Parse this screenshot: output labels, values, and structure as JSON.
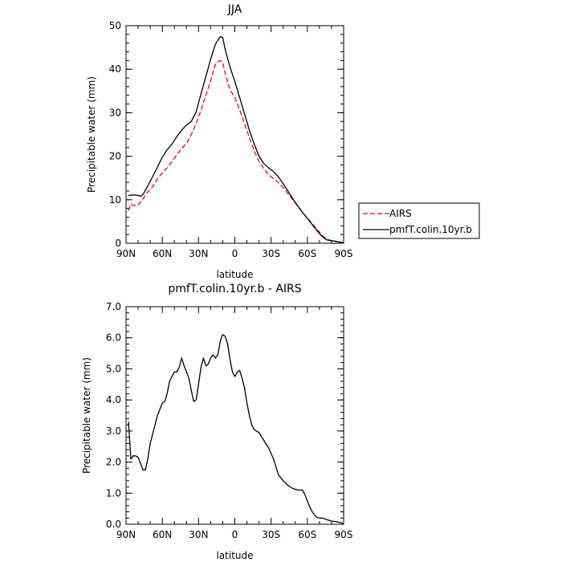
{
  "chart_data": [
    {
      "type": "line",
      "title": "JJA",
      "xlabel": "latitude",
      "ylabel": "Precipitable water (mm)",
      "xlim": [
        90,
        -90
      ],
      "ylim": [
        0,
        50
      ],
      "x_ticks": [
        90,
        60,
        30,
        0,
        -30,
        -60,
        -90
      ],
      "x_tick_labels": [
        "90N",
        "60N",
        "30N",
        "0",
        "30S",
        "60S",
        "90S"
      ],
      "y_ticks": [
        0,
        10,
        20,
        30,
        40,
        50
      ],
      "y_tick_labels": [
        "0",
        "10",
        "20",
        "30",
        "40",
        "50"
      ],
      "grid": false,
      "legend": {
        "placement": "right",
        "entries": [
          "AIRS",
          "pmfT.colin.10yr.b"
        ]
      },
      "series": [
        {
          "name": "AIRS",
          "color": "#ff0000",
          "dash": "dashed",
          "x": [
            88,
            86,
            84,
            80,
            76,
            72,
            68,
            64,
            60,
            56,
            52,
            48,
            44,
            40,
            36,
            32,
            28,
            24,
            20,
            16,
            12,
            10,
            8,
            4,
            0,
            -4,
            -8,
            -12,
            -16,
            -20,
            -24,
            -28,
            -32,
            -36,
            -40,
            -44,
            -48,
            -52,
            -56,
            -60,
            -64,
            -68,
            -72,
            -76,
            -80,
            -84,
            -88,
            -90
          ],
          "y": [
            7.5,
            9,
            8.7,
            8.8,
            10.2,
            11.8,
            13,
            14.8,
            16.2,
            17.3,
            18.8,
            20.3,
            21.8,
            22.9,
            25,
            27.5,
            30.5,
            34,
            37.3,
            41.2,
            42,
            41.6,
            39,
            35.3,
            33.5,
            30.7,
            27.5,
            24.3,
            21.2,
            18.8,
            17.1,
            15.8,
            14.8,
            14,
            12.8,
            11.4,
            10,
            8.5,
            7.1,
            5.8,
            4.5,
            3.2,
            1.9,
            0.9,
            0.6,
            0.4,
            0.2,
            0.1
          ]
        },
        {
          "name": "pmfT.colin.10yr.b",
          "color": "#000000",
          "dash": "solid",
          "x": [
            88,
            84,
            80,
            78,
            76,
            72,
            68,
            64,
            60,
            56,
            52,
            48,
            44,
            40,
            36,
            32,
            28,
            24,
            20,
            16,
            12,
            10,
            8,
            4,
            0,
            -4,
            -8,
            -12,
            -16,
            -20,
            -24,
            -28,
            -32,
            -36,
            -40,
            -44,
            -48,
            -52,
            -56,
            -60,
            -64,
            -68,
            -72,
            -76,
            -80,
            -84,
            -88,
            -90
          ],
          "y": [
            11,
            11.1,
            11,
            10.8,
            11.2,
            13.2,
            15.3,
            17.5,
            19.8,
            21.5,
            22.8,
            24.5,
            26,
            27.2,
            28,
            30.2,
            34.3,
            38.3,
            42.3,
            45.8,
            47.5,
            47.3,
            44.5,
            40.5,
            37.2,
            33.5,
            29.8,
            26,
            22.8,
            20,
            18.3,
            17.3,
            16.5,
            15.3,
            13.7,
            12,
            10.2,
            8.6,
            7.1,
            5.7,
            4.3,
            2.9,
            1.6,
            0.8,
            0.6,
            0.4,
            0.2,
            0.1
          ]
        }
      ]
    },
    {
      "type": "line",
      "title": "pmfT.colin.10yr.b - AIRS",
      "xlabel": "latitude",
      "ylabel": "Precipitable water (mm)",
      "xlim": [
        90,
        -90
      ],
      "ylim": [
        0,
        7
      ],
      "x_ticks": [
        90,
        60,
        30,
        0,
        -30,
        -60,
        -90
      ],
      "x_tick_labels": [
        "90N",
        "60N",
        "30N",
        "0",
        "30S",
        "60S",
        "90S"
      ],
      "y_ticks": [
        0,
        1,
        2,
        3,
        4,
        5,
        6,
        7
      ],
      "y_tick_labels": [
        "0.0",
        "1.0",
        "2.0",
        "3.0",
        "4.0",
        "5.0",
        "6.0",
        "7.0"
      ],
      "grid": false,
      "series": [
        {
          "color": "#000000",
          "dash": "solid",
          "x": [
            88,
            86,
            84,
            82,
            80,
            78,
            76,
            74,
            72,
            70,
            68,
            64,
            60,
            58,
            56,
            54,
            52,
            50,
            48,
            46,
            44,
            42,
            40,
            38,
            36,
            34,
            32,
            30,
            28,
            26,
            24,
            22,
            20,
            18,
            16,
            14,
            12,
            10,
            8,
            6,
            4,
            2,
            0,
            -2,
            -4,
            -6,
            -8,
            -10,
            -12,
            -14,
            -16,
            -18,
            -20,
            -24,
            -28,
            -32,
            -36,
            -40,
            -44,
            -48,
            -52,
            -56,
            -58,
            -60,
            -62,
            -64,
            -66,
            -68,
            -70,
            -72,
            -74,
            -76,
            -80,
            -84,
            -88,
            -90
          ],
          "y": [
            3.3,
            2.1,
            2.2,
            2.2,
            2.15,
            1.95,
            1.75,
            1.75,
            2.1,
            2.6,
            2.9,
            3.5,
            3.9,
            3.95,
            4.2,
            4.6,
            4.75,
            4.9,
            4.9,
            5.05,
            5.35,
            5.1,
            4.9,
            4.7,
            4.3,
            3.95,
            4.0,
            4.5,
            5.05,
            5.35,
            5.1,
            5.15,
            5.35,
            5.45,
            5.35,
            5.45,
            5.9,
            6.1,
            6.05,
            5.8,
            5.3,
            4.9,
            4.75,
            4.9,
            4.95,
            4.7,
            4.4,
            3.9,
            3.5,
            3.2,
            3.05,
            3.0,
            2.95,
            2.7,
            2.45,
            2.1,
            1.6,
            1.4,
            1.25,
            1.15,
            1.1,
            1.1,
            0.95,
            0.75,
            0.55,
            0.4,
            0.3,
            0.22,
            0.2,
            0.2,
            0.18,
            0.15,
            0.1,
            0.08,
            0.05,
            0.0
          ]
        }
      ]
    }
  ]
}
